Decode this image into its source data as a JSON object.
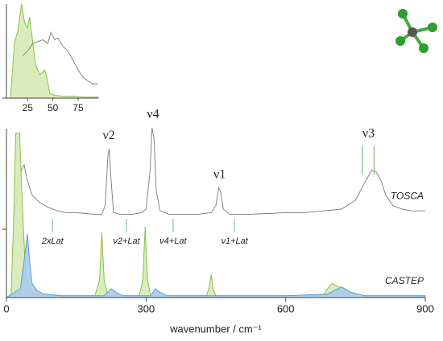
{
  "chart_data": [
    {
      "type": "line",
      "xlabel": "wavenumber / cm⁻¹",
      "xlim": [
        0,
        900
      ],
      "xticks": [
        0,
        300,
        600,
        900
      ],
      "ylim": [
        0,
        100
      ],
      "series": [
        {
          "name": "TOSCA",
          "color": "#7a7a7a",
          "fill": false,
          "x": [
            17,
            25,
            32,
            38,
            45,
            55,
            70,
            90,
            110,
            130,
            150,
            170,
            190,
            205,
            212,
            218,
            221,
            224,
            230,
            245,
            270,
            290,
            300,
            308,
            313,
            317,
            322,
            330,
            350,
            380,
            410,
            440,
            450,
            456,
            460,
            466,
            480,
            520,
            560,
            600,
            640,
            680,
            720,
            750,
            770,
            785,
            795,
            805,
            815,
            830,
            850,
            870,
            900
          ],
          "values": [
            45,
            62,
            72,
            75,
            66,
            58,
            54,
            51,
            49,
            48,
            48,
            47.5,
            47,
            47,
            52,
            80,
            84,
            70,
            48,
            47,
            47,
            48,
            50,
            70,
            96,
            90,
            60,
            49,
            47,
            47,
            47,
            48,
            52,
            62,
            60,
            50,
            47,
            47,
            47.5,
            48,
            48,
            49,
            50,
            55,
            65,
            72,
            71,
            66,
            58,
            52,
            50,
            49,
            49
          ]
        },
        {
          "name": "CASTEP",
          "color": "#8bbf4a",
          "fill": "#d7eab5",
          "x": [
            0,
            10,
            15,
            20,
            28,
            33,
            38,
            42,
            50,
            80,
            190,
            200,
            205,
            210,
            218,
            285,
            293,
            298,
            303,
            310,
            430,
            436,
            440,
            444,
            450,
            680,
            690,
            700,
            715,
            730,
            750,
            770,
            900
          ],
          "values": [
            0,
            2,
            40,
            93,
            93,
            60,
            30,
            10,
            3,
            1,
            1,
            10,
            37,
            10,
            1,
            1,
            10,
            40,
            10,
            1,
            1,
            6,
            13,
            5,
            1,
            1,
            5,
            8,
            6,
            4,
            2,
            1,
            1
          ]
        },
        {
          "color": "#5b9bd5",
          "fill": "#a9cbea",
          "x": [
            0,
            30,
            40,
            45,
            50,
            55,
            65,
            80,
            120,
            210,
            225,
            235,
            250,
            310,
            320,
            330,
            345,
            500,
            600,
            690,
            720,
            740,
            770,
            900
          ],
          "values": [
            0,
            5,
            25,
            36,
            20,
            8,
            4,
            2,
            1,
            1,
            5,
            3,
            1,
            1,
            5,
            3,
            1,
            1,
            1,
            2,
            6,
            3,
            1,
            1
          ]
        }
      ],
      "annotations": [
        {
          "text": "ν2",
          "x": 220
        },
        {
          "text": "ν4",
          "x": 315
        },
        {
          "text": "ν1",
          "x": 458
        },
        {
          "text": "ν3",
          "x": 778,
          "lines": [
            765,
            790
          ]
        }
      ],
      "combination_labels": [
        {
          "text": "2xLat",
          "x": 99
        },
        {
          "text": "ν2+Lat",
          "x": 258
        },
        {
          "text": "ν4+Lat",
          "x": 358
        },
        {
          "text": "ν1+Lat",
          "x": 490
        }
      ]
    },
    {
      "type": "line",
      "xlim": [
        0,
        95
      ],
      "xticks": [
        25,
        50,
        75
      ],
      "ylim": [
        0,
        100
      ],
      "series": [
        {
          "color": "#8bbf4a",
          "fill": "#d7eab5",
          "x": [
            8,
            12,
            15,
            19,
            22,
            25,
            27,
            30,
            33,
            37,
            40,
            42,
            44,
            47,
            52,
            60,
            70,
            80,
            95
          ],
          "values": [
            0,
            60,
            70,
            100,
            80,
            75,
            86,
            60,
            35,
            25,
            28,
            30,
            22,
            5,
            3,
            2,
            2,
            1,
            1
          ]
        },
        {
          "color": "#7a7a7a",
          "fill": false,
          "x": [
            20,
            25,
            30,
            35,
            40,
            45,
            48,
            52,
            55,
            60,
            65,
            70,
            75,
            80,
            85,
            90,
            95
          ],
          "values": [
            45,
            50,
            58,
            60,
            62,
            58,
            70,
            62,
            64,
            55,
            50,
            40,
            30,
            22,
            18,
            15,
            15
          ]
        }
      ]
    }
  ]
}
